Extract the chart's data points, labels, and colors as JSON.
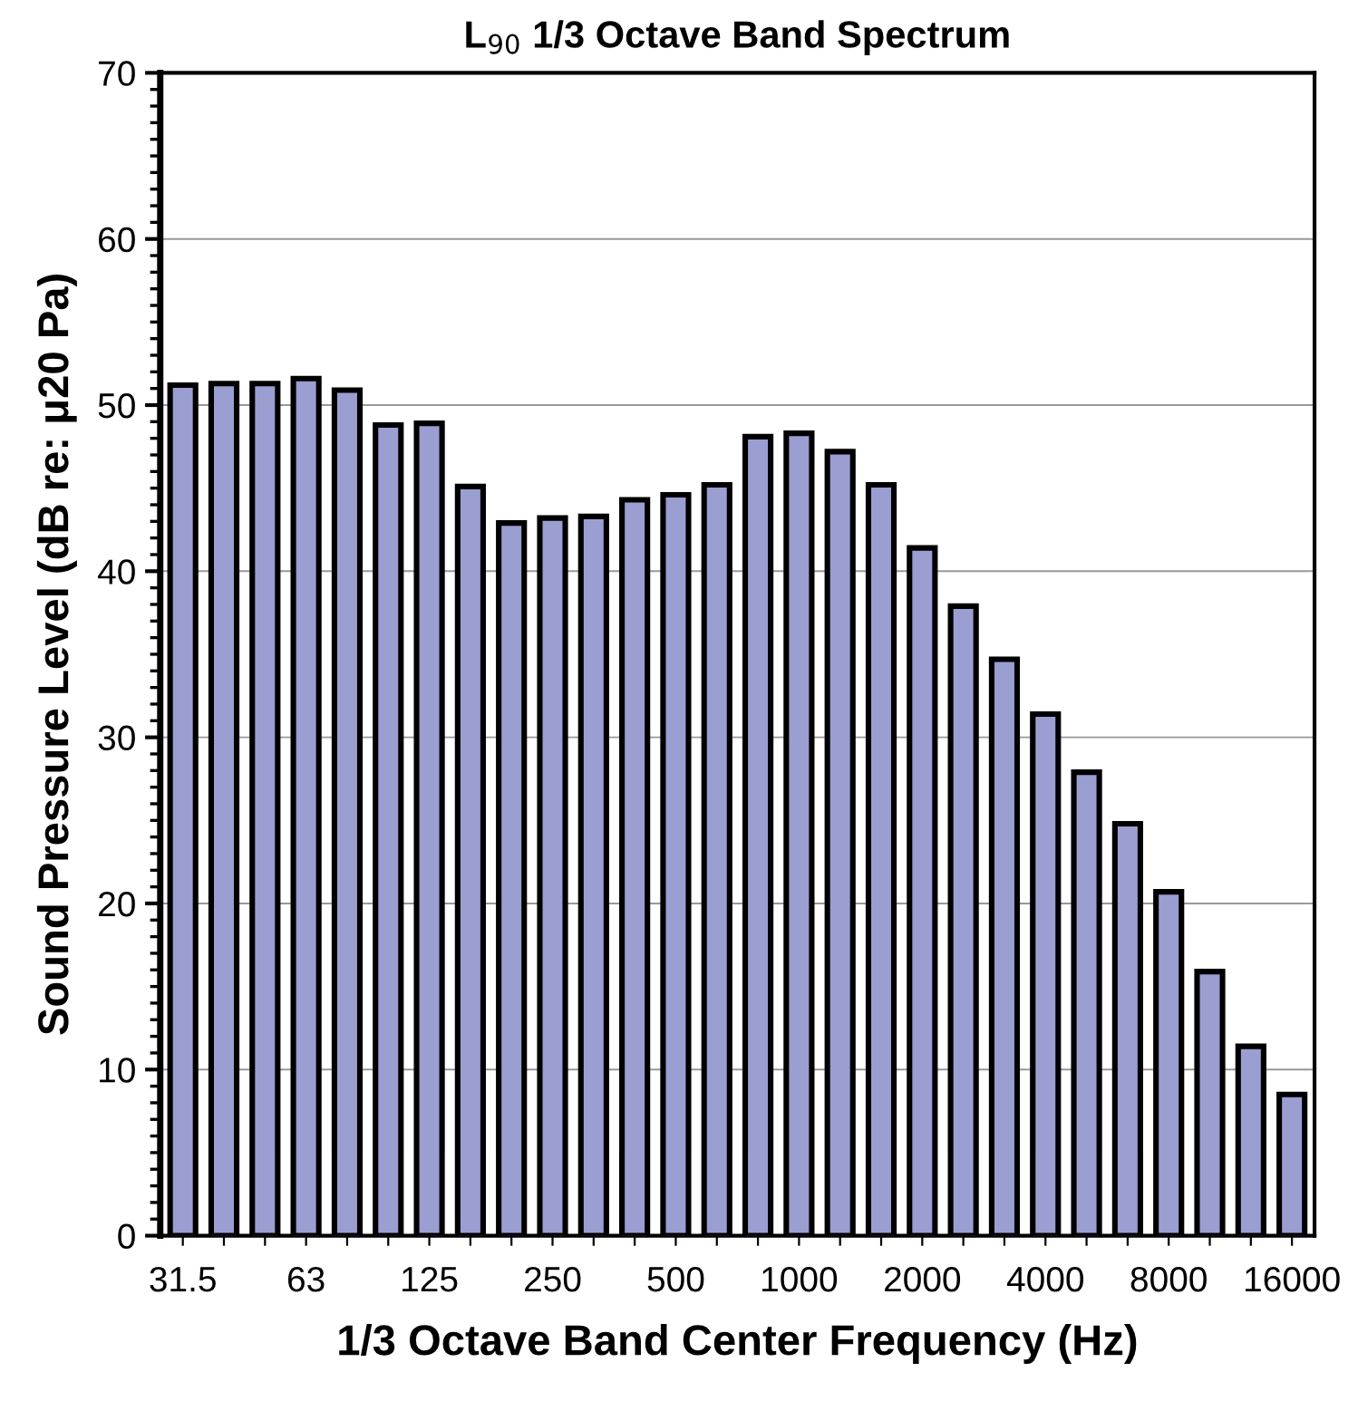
{
  "chart_data": {
    "type": "bar",
    "title": "L$_{90}$ 1/3 Octave Band Spectrum",
    "xlabel": "1/3 Octave Band Center Frequency (Hz)",
    "ylabel": "Sound Pressure Level (dB re: μ20 Pa)",
    "categories": [
      "31.5",
      null,
      null,
      "63",
      null,
      null,
      "125",
      null,
      null,
      "250",
      null,
      null,
      "500",
      null,
      null,
      "1000",
      null,
      null,
      "2000",
      null,
      null,
      "4000",
      null,
      null,
      "8000",
      null,
      null,
      "16000"
    ],
    "values": [
      51.2,
      51.3,
      51.3,
      51.6,
      50.9,
      48.8,
      48.9,
      45.1,
      42.9,
      43.2,
      43.3,
      44.3,
      44.6,
      45.2,
      48.1,
      48.3,
      47.2,
      45.2,
      41.4,
      37.9,
      34.7,
      31.4,
      27.9,
      24.8,
      20.7,
      15.9,
      11.4,
      8.5
    ],
    "color": "#9a9ed0",
    "ylim": [
      0,
      70
    ],
    "yticks": [
      0,
      10,
      20,
      30,
      40,
      50,
      60,
      70
    ],
    "grid": "y"
  }
}
